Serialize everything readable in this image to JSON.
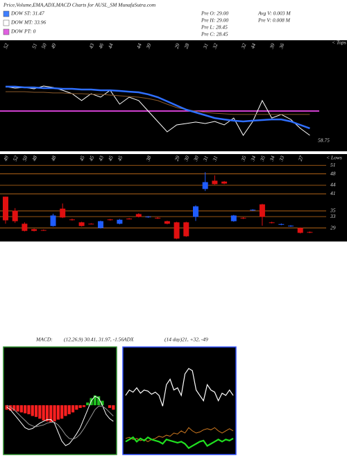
{
  "header": {
    "title": "Price,Volume,EMA,ADX,MACD Charts for AUSL_SM MunafaSutra.com",
    "legend": [
      {
        "label": "DOW ST: 31.47",
        "color": "#3f7fff"
      },
      {
        "label": "DOW MT: 33.96",
        "color": "#ffffff"
      },
      {
        "label": "DOW PT: 0",
        "color": "#e060e0"
      }
    ],
    "stats": [
      "Pre O: 29.00",
      "Pre H: 29.00",
      "Pre L: 28.45",
      "Pre C: 28.45",
      "Avg V: 0.003 M",
      "Pre V: 0.008 M"
    ]
  },
  "chart_data": [
    {
      "type": "line",
      "top_labels": [
        "52",
        null,
        null,
        "51",
        "50",
        "49",
        null,
        null,
        null,
        "43",
        "46",
        "44",
        null,
        null,
        "44",
        "39",
        null,
        null,
        "29",
        "28",
        null,
        "31",
        "32",
        null,
        null,
        "32",
        "44",
        null,
        "39",
        "36",
        null,
        null,
        null
      ],
      "corner_label": "< Tops",
      "end_label": "58.75",
      "ylim": [
        0,
        100
      ],
      "series": [
        {
          "color": "#ffffff",
          "width": 1,
          "values": [
            58.1,
            56.8,
            57.4,
            56.1,
            58.7,
            57.4,
            54.8,
            51.6,
            45.2,
            51.6,
            48.4,
            54.8,
            41.9,
            48.4,
            45.2,
            35.5,
            25.8,
            16.1,
            22.6,
            23.9,
            25.2,
            23.9,
            25.8,
            22.6,
            29.0,
            12.9,
            25.8,
            45.2,
            29.0,
            32.3,
            27.7,
            19.4,
            12.9
          ]
        },
        {
          "color": "#8b5a2b",
          "width": 1,
          "values": [
            53.5,
            53.5,
            53.5,
            52.9,
            52.9,
            52.3,
            52.3,
            51.6,
            51.6,
            51.0,
            51.0,
            50.3,
            49.7,
            49.0,
            48.4,
            47.1,
            45.2,
            41.9,
            38.7,
            36.8,
            35.5,
            34.2,
            33.5,
            32.9,
            32.3,
            32.3,
            32.3,
            32.3,
            32.3,
            32.3,
            32.3,
            32.3,
            32.3
          ]
        },
        {
          "color": "#2f6fff",
          "width": 2.5,
          "values": [
            58.1,
            58.1,
            57.4,
            57.4,
            56.8,
            56.8,
            56.1,
            56.1,
            55.5,
            55.5,
            54.8,
            54.8,
            54.2,
            53.5,
            52.9,
            51.0,
            48.4,
            44.5,
            40.6,
            36.8,
            34.2,
            31.6,
            29.0,
            27.7,
            26.5,
            25.8,
            26.5,
            27.1,
            27.7,
            27.7,
            25.8,
            22.6,
            19.4
          ]
        }
      ],
      "hline": {
        "value": 35.5,
        "color": "#d040d0"
      }
    },
    {
      "type": "candlestick",
      "categories": [
        "49",
        "52",
        "50",
        "48",
        null,
        "48",
        null,
        null,
        "45",
        "45",
        "43",
        "45",
        "45",
        null,
        null,
        "38",
        null,
        null,
        "29",
        "30",
        "30",
        "31",
        "31",
        null,
        null,
        "35",
        "34",
        "35",
        "34",
        "33",
        null,
        "27",
        null
      ],
      "corner_label": "< Lows",
      "open": [
        40.0,
        35.1,
        30.5,
        28.6,
        28.3,
        29.7,
        35.8,
        32.0,
        31.0,
        30.5,
        29.0,
        32.0,
        30.5,
        32.3,
        33.9,
        32.8,
        32.6,
        31.4,
        31.0,
        31.0,
        32.9,
        42.7,
        45.6,
        45.3,
        31.4,
        32.6,
        35.2,
        37.3,
        31.0,
        30.2,
        29.6,
        29.0,
        27.6
      ],
      "high": [
        40.0,
        36.0,
        31.0,
        28.8,
        28.5,
        34.0,
        37.6,
        32.3,
        31.2,
        30.7,
        31.6,
        32.2,
        32.2,
        32.5,
        34.2,
        33.2,
        32.8,
        31.6,
        31.2,
        31.2,
        37.0,
        48.6,
        47.5,
        45.5,
        33.6,
        32.8,
        35.6,
        37.5,
        31.2,
        30.6,
        30.0,
        29.2,
        27.8
      ],
      "low": [
        30.5,
        30.8,
        27.8,
        27.8,
        28.0,
        29.5,
        32.5,
        31.6,
        29.5,
        30.3,
        28.8,
        31.6,
        30.3,
        32.0,
        32.7,
        32.6,
        32.2,
        30.3,
        25.1,
        25.9,
        31.5,
        42.0,
        44.2,
        44.4,
        31.2,
        32.2,
        35.0,
        29.8,
        30.6,
        30.0,
        29.4,
        27.1,
        27.2
      ],
      "close": [
        31.7,
        31.4,
        28.0,
        28.0,
        28.2,
        33.4,
        32.7,
        31.8,
        29.7,
        30.4,
        31.4,
        31.8,
        31.9,
        32.2,
        32.9,
        33.0,
        32.4,
        30.5,
        25.3,
        26.1,
        36.6,
        45.1,
        44.4,
        44.6,
        33.4,
        32.4,
        35.4,
        32.9,
        30.8,
        30.4,
        29.8,
        27.3,
        27.4
      ],
      "up_color": "#1f5cff",
      "down_color": "#e01010",
      "ylim": [
        25,
        53.5
      ],
      "yticks": [
        51,
        48,
        44,
        41,
        35,
        33,
        29
      ],
      "grid_color": "#c8701a"
    },
    {
      "type": "macd",
      "title": "MACD:",
      "subtitle": "(12,26,9) 30.41, 31.97, -1.56",
      "ylim": [
        -5.5,
        6.5
      ],
      "histogram": {
        "values": [
          -0.5,
          -0.6,
          -0.6,
          -0.7,
          -0.8,
          -0.9,
          -1.0,
          -1.2,
          -1.3,
          -1.5,
          -1.7,
          -1.8,
          -1.9,
          -1.8,
          -1.6,
          -1.5,
          -1.2,
          -1.0,
          -0.8,
          -0.5,
          -0.3,
          -0.2,
          0.3,
          0.8,
          1.1,
          1.0,
          0.5,
          0.0,
          -0.3,
          -0.5
        ],
        "pos_color": "#20c020",
        "neg_color": "#ff2020"
      },
      "series": [
        {
          "color": "#ffffff",
          "values": [
            -0.2,
            -0.5,
            -1.0,
            -1.5,
            -2.0,
            -2.5,
            -2.7,
            -2.6,
            -2.3,
            -2.0,
            -1.8,
            -1.6,
            -1.6,
            -2.0,
            -3.0,
            -4.0,
            -4.5,
            -4.3,
            -3.8,
            -3.2,
            -2.5,
            -1.5,
            -0.5,
            0.5,
            1.0,
            0.8,
            0.0,
            -1.0,
            -1.5,
            -1.8
          ]
        },
        {
          "color": "#9a9a9a",
          "values": [
            0,
            -0.2,
            -0.5,
            -0.9,
            -1.3,
            -1.7,
            -2.1,
            -2.3,
            -2.4,
            -2.3,
            -2.2,
            -2.0,
            -1.9,
            -1.9,
            -2.2,
            -2.7,
            -3.3,
            -3.7,
            -3.8,
            -3.6,
            -3.2,
            -2.6,
            -1.9,
            -1.2,
            -0.5,
            -0.1,
            -0.1,
            -0.4,
            -0.8,
            -1.2
          ]
        }
      ],
      "border_color": "#2a8a2a"
    },
    {
      "type": "adx",
      "title": "ADX",
      "subtitle": "(14 day)21, +32, -49",
      "ylim": [
        0,
        100
      ],
      "series": [
        {
          "color": "#ffffff",
          "width": 1.2,
          "values": [
            55,
            60,
            58,
            62,
            57,
            60,
            59,
            56,
            58,
            55,
            45,
            65,
            70,
            60,
            62,
            55,
            75,
            80,
            78,
            60,
            55,
            50,
            65,
            60,
            58,
            50,
            57,
            55,
            60,
            55
          ]
        },
        {
          "color": "#d07a20",
          "width": 1,
          "values": [
            15,
            16,
            14,
            15,
            13,
            14,
            12,
            14,
            15,
            17,
            16,
            18,
            17,
            20,
            19,
            22,
            20,
            25,
            22,
            20,
            21,
            23,
            24,
            23,
            25,
            22,
            20,
            22,
            24,
            22
          ]
        },
        {
          "color": "#20e020",
          "width": 2.2,
          "values": [
            12,
            14,
            16,
            12,
            15,
            13,
            16,
            14,
            13,
            12,
            10,
            14,
            13,
            12,
            11,
            12,
            10,
            6,
            8,
            10,
            12,
            13,
            8,
            10,
            12,
            14,
            12,
            14,
            13,
            15
          ]
        }
      ],
      "border_color": "#3050ff"
    }
  ]
}
